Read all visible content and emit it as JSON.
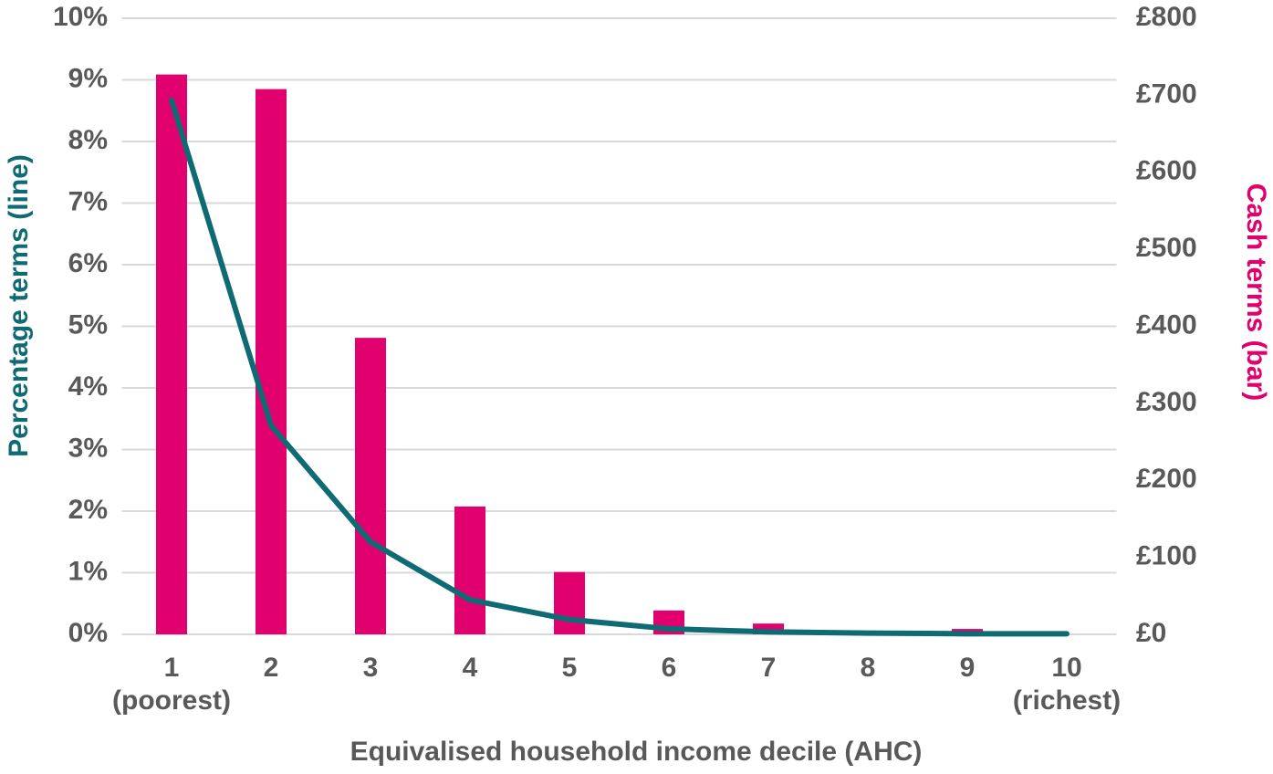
{
  "chart_data": {
    "type": "bar-line",
    "x_label": "Equivalised household income decile (AHC)",
    "y_label": "Percentage terms (line)",
    "y2_label": "Cash terms (bar)",
    "categories": [
      "1\n(poorest)",
      "2",
      "3",
      "4",
      "5",
      "6",
      "7",
      "8",
      "9",
      "10\n(richest)"
    ],
    "series": [
      {
        "type": "bar",
        "axis": "y2",
        "color": "#e0006e",
        "values": [
          727,
          708,
          385,
          166,
          81,
          31,
          14,
          2,
          7,
          0
        ]
      },
      {
        "type": "line",
        "axis": "y",
        "color": "#0e6b73",
        "values": [
          8.67,
          3.39,
          1.5,
          0.56,
          0.24,
          0.09,
          0.04,
          0.02,
          0.01,
          0.01
        ]
      }
    ],
    "ylim": [
      0,
      10
    ],
    "yticks": [
      {
        "value": 0,
        "label": "0%"
      },
      {
        "value": 1,
        "label": "1%"
      },
      {
        "value": 2,
        "label": "2%"
      },
      {
        "value": 3,
        "label": "3%"
      },
      {
        "value": 4,
        "label": "4%"
      },
      {
        "value": 5,
        "label": "5%"
      },
      {
        "value": 6,
        "label": "6%"
      },
      {
        "value": 7,
        "label": "7%"
      },
      {
        "value": 8,
        "label": "8%"
      },
      {
        "value": 9,
        "label": "9%"
      },
      {
        "value": 10,
        "label": "10%"
      }
    ],
    "y2lim": [
      0,
      800
    ],
    "y2ticks": [
      {
        "value": 0,
        "label": "£0"
      },
      {
        "value": 100,
        "label": "£100"
      },
      {
        "value": 200,
        "label": "£200"
      },
      {
        "value": 300,
        "label": "£300"
      },
      {
        "value": 400,
        "label": "£400"
      },
      {
        "value": 500,
        "label": "£500"
      },
      {
        "value": 600,
        "label": "£600"
      },
      {
        "value": 700,
        "label": "£700"
      },
      {
        "value": 800,
        "label": "£800"
      }
    ],
    "grid": true
  }
}
